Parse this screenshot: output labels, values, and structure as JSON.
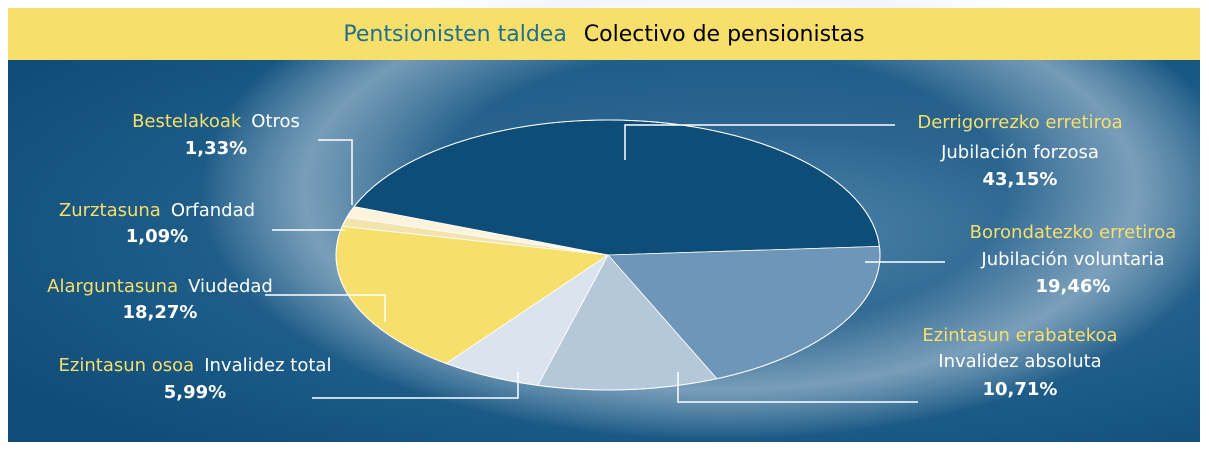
{
  "chart_data": {
    "type": "pie",
    "title": "Pentsionisten taldea",
    "subtitle": "Colectivo de pensionistas",
    "categories": [
      "Derrigorrezko erretiroa",
      "Borondatezko erretiroa",
      "Ezintasun erabatekoa",
      "Ezintasun osoa",
      "Alarguntasuna",
      "Zurztasuna",
      "Bestelakoak"
    ],
    "labels_es": [
      "Jubilación forzosa",
      "Jubilación voluntaria",
      "Invalidez absoluta",
      "Invalidez total",
      "Viudedad",
      "Orfandad",
      "Otros"
    ],
    "values": [
      43.15,
      19.46,
      10.71,
      5.99,
      18.27,
      1.09,
      1.33
    ],
    "value_labels": [
      "43,15%",
      "19,46%",
      "10,71%",
      "5,99%",
      "18,27%",
      "1,09%",
      "1,33%"
    ],
    "colors": [
      "#0e4d78",
      "#6e96b9",
      "#b5c8da",
      "#dbe3ee",
      "#f7df6b",
      "#f3e3ae",
      "#fbf3dc"
    ]
  }
}
